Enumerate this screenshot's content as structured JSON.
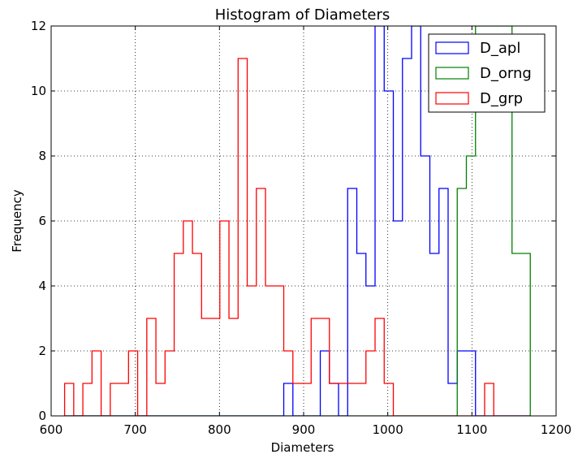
{
  "chart_data": {
    "type": "histogram",
    "title": "Histogram of Diameters",
    "xlabel": "Diameters",
    "ylabel": "Frequency",
    "xlim": [
      600,
      1200
    ],
    "ylim": [
      0,
      12
    ],
    "xticks": [
      "600",
      "700",
      "800",
      "900",
      "1000",
      "1100",
      "1200"
    ],
    "yticks": [
      "0",
      "2",
      "4",
      "6",
      "8",
      "10",
      "12"
    ],
    "grid": true,
    "legend_position": "top-right",
    "series": [
      {
        "name": "D_apl",
        "color": "#0000ff",
        "bin_start": 616,
        "bin_width": 10.85,
        "counts": [
          0,
          0,
          0,
          0,
          0,
          0,
          0,
          0,
          0,
          0,
          0,
          0,
          0,
          0,
          0,
          0,
          0,
          0,
          0,
          0,
          0,
          0,
          0,
          0,
          1,
          0,
          0,
          0,
          2,
          1,
          0,
          7,
          5,
          4,
          12,
          10,
          6,
          11,
          12,
          8,
          5,
          7,
          1,
          2,
          2,
          0,
          0,
          0,
          0,
          0,
          0
        ]
      },
      {
        "name": "D_orng",
        "color": "#008000",
        "bin_start": 616,
        "bin_width": 10.85,
        "counts": [
          0,
          0,
          0,
          0,
          0,
          0,
          0,
          0,
          0,
          0,
          0,
          0,
          0,
          0,
          0,
          0,
          0,
          0,
          0,
          0,
          0,
          0,
          0,
          0,
          0,
          0,
          0,
          0,
          0,
          0,
          0,
          0,
          0,
          0,
          0,
          0,
          0,
          0,
          0,
          0,
          0,
          0,
          0,
          7,
          8,
          12,
          12,
          12,
          12,
          5,
          5
        ]
      },
      {
        "name": "D_grp",
        "color": "#ff0000",
        "bin_start": 616,
        "bin_width": 10.85,
        "counts": [
          1,
          0,
          1,
          2,
          0,
          1,
          1,
          2,
          0,
          3,
          1,
          2,
          5,
          6,
          5,
          3,
          3,
          6,
          3,
          11,
          4,
          7,
          4,
          4,
          2,
          1,
          1,
          3,
          3,
          1,
          1,
          1,
          1,
          2,
          3,
          1,
          0,
          0,
          0,
          0,
          0,
          0,
          0,
          0,
          0,
          0,
          1,
          0,
          0,
          0,
          0
        ]
      }
    ]
  }
}
